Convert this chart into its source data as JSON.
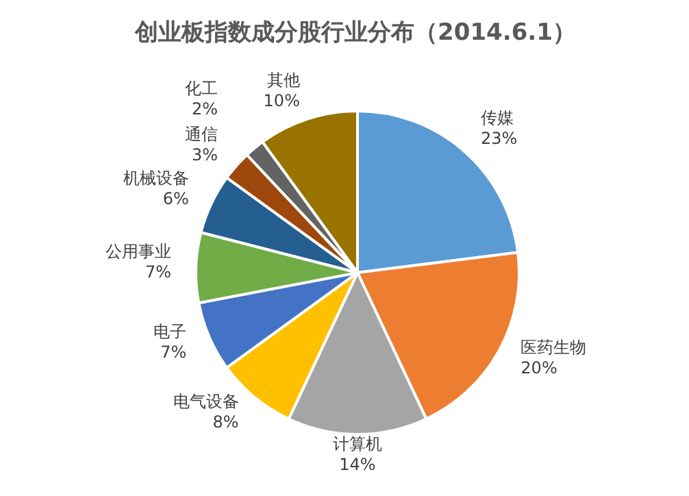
{
  "chart_data": {
    "type": "pie",
    "title": "创业板指数成分股行业分布（2014.6.1）",
    "categories": [
      "传媒",
      "医药生物",
      "计算机",
      "电气设备",
      "电子",
      "公用事业",
      "机械设备",
      "通信",
      "化工",
      "其他"
    ],
    "values": [
      23,
      20,
      14,
      8,
      7,
      7,
      6,
      3,
      2,
      10
    ],
    "value_labels": [
      "23%",
      "20%",
      "14%",
      "8%",
      "7%",
      "7%",
      "6%",
      "3%",
      "2%",
      "10%"
    ],
    "colors": [
      "#5b9bd5",
      "#ed7d31",
      "#a5a5a5",
      "#ffc000",
      "#4472c4",
      "#70ad47",
      "#255e91",
      "#9e480e",
      "#636363",
      "#997300"
    ],
    "legend": false
  }
}
